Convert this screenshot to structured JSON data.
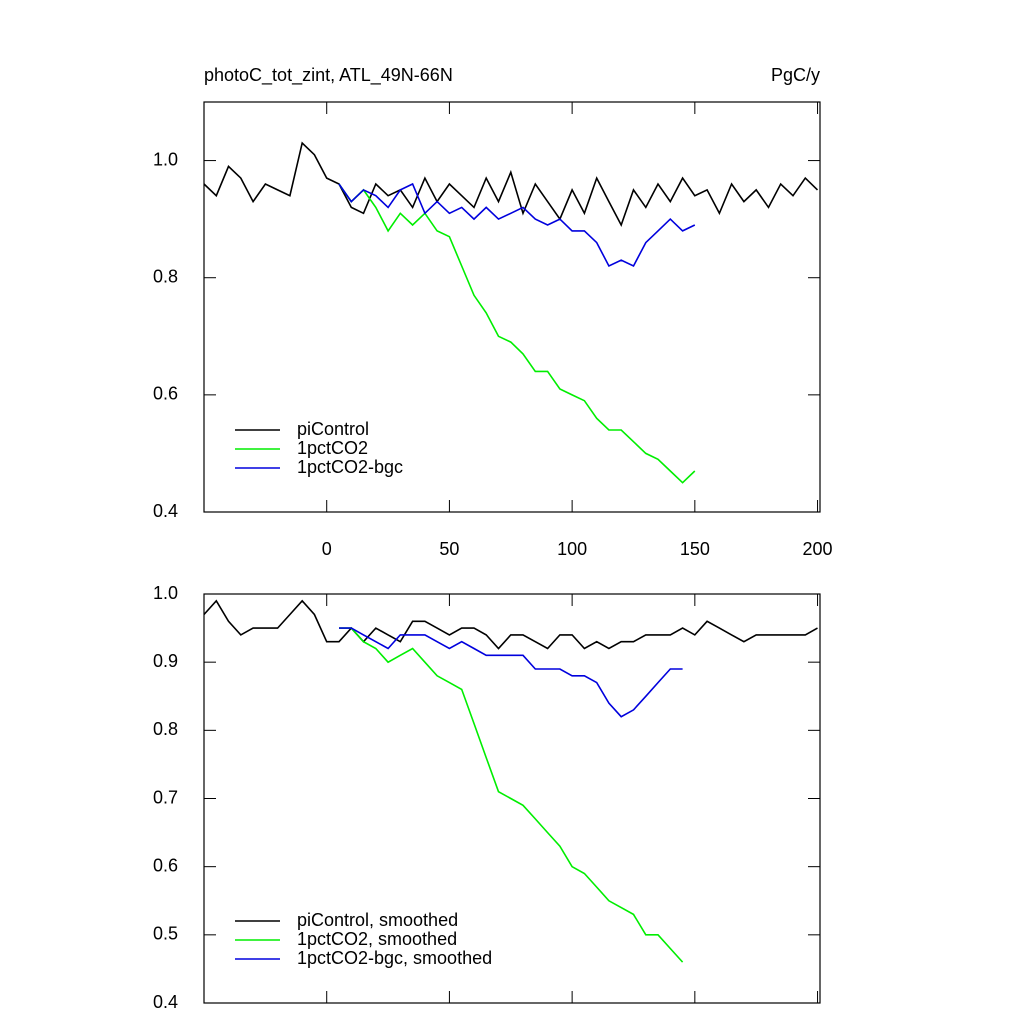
{
  "chart_data": [
    {
      "type": "line",
      "title": "photoC_tot_zint, ATL_49N-66N",
      "units_label": "PgC/y",
      "x": [
        -50,
        -45,
        -40,
        -35,
        -30,
        -25,
        -20,
        -15,
        -10,
        -5,
        0,
        5,
        10,
        15,
        20,
        25,
        30,
        35,
        40,
        45,
        50,
        55,
        60,
        65,
        70,
        75,
        80,
        85,
        90,
        95,
        100,
        105,
        110,
        115,
        120,
        125,
        130,
        135,
        140,
        145,
        150,
        155,
        160,
        165,
        170,
        175,
        180,
        185,
        190,
        195,
        200
      ],
      "xlim": [
        -50,
        201
      ],
      "xticks": [
        0,
        50,
        100,
        150,
        200
      ],
      "ylim": [
        0.4,
        1.1
      ],
      "yticks": [
        0.4,
        0.6,
        0.8,
        {
          "value": 1,
          "label": "1.0"
        }
      ],
      "legend": "lower left",
      "series": [
        {
          "name": "piControl",
          "color": "#000000",
          "values": [
            0.96,
            0.94,
            0.99,
            0.97,
            0.93,
            0.96,
            0.95,
            0.94,
            1.03,
            1.01,
            0.97,
            0.96,
            0.92,
            0.91,
            0.96,
            0.94,
            0.95,
            0.92,
            0.97,
            0.93,
            0.96,
            0.94,
            0.92,
            0.97,
            0.93,
            0.98,
            0.91,
            0.96,
            0.93,
            0.9,
            0.95,
            0.91,
            0.97,
            0.93,
            0.89,
            0.95,
            0.92,
            0.96,
            0.93,
            0.97,
            0.94,
            0.95,
            0.91,
            0.96,
            0.93,
            0.95,
            0.92,
            0.96,
            0.94,
            0.97,
            0.95
          ]
        },
        {
          "name": "1pctCO2",
          "color": "#00ee00",
          "values": [
            null,
            null,
            null,
            null,
            null,
            null,
            null,
            null,
            null,
            null,
            null,
            0.96,
            0.93,
            0.95,
            0.92,
            0.88,
            0.91,
            0.89,
            0.91,
            0.88,
            0.87,
            0.82,
            0.77,
            0.74,
            0.7,
            0.69,
            0.67,
            0.64,
            0.64,
            0.61,
            0.6,
            0.59,
            0.56,
            0.54,
            0.54,
            0.52,
            0.5,
            0.49,
            0.47,
            0.45,
            0.47,
            null,
            null,
            null,
            null,
            null,
            null,
            null,
            null,
            null,
            null
          ]
        },
        {
          "name": "1pctCO2-bgc",
          "color": "#0000dd",
          "values": [
            null,
            null,
            null,
            null,
            null,
            null,
            null,
            null,
            null,
            null,
            null,
            0.96,
            0.93,
            0.95,
            0.94,
            0.92,
            0.95,
            0.96,
            0.91,
            0.93,
            0.91,
            0.92,
            0.9,
            0.92,
            0.9,
            0.91,
            0.92,
            0.9,
            0.89,
            0.9,
            0.88,
            0.88,
            0.86,
            0.82,
            0.83,
            0.82,
            0.86,
            0.88,
            0.9,
            0.88,
            0.89,
            null,
            null,
            null,
            null,
            null,
            null,
            null,
            null,
            null,
            null
          ]
        }
      ]
    },
    {
      "type": "line",
      "x": [
        -50,
        -45,
        -40,
        -35,
        -30,
        -25,
        -20,
        -15,
        -10,
        -5,
        0,
        5,
        10,
        15,
        20,
        25,
        30,
        35,
        40,
        45,
        50,
        55,
        60,
        65,
        70,
        75,
        80,
        85,
        90,
        95,
        100,
        105,
        110,
        115,
        120,
        125,
        130,
        135,
        140,
        145,
        150,
        155,
        160,
        165,
        170,
        175,
        180,
        185,
        190,
        195,
        200
      ],
      "xlim": [
        -50,
        201
      ],
      "xticks": [
        0,
        50,
        100,
        150,
        200
      ],
      "ylim": [
        0.4,
        1.0
      ],
      "yticks": [
        0.4,
        0.5,
        0.6,
        0.7,
        0.8,
        0.9,
        {
          "value": 1,
          "label": "1.0"
        }
      ],
      "legend": "lower left",
      "series": [
        {
          "name": "piControl, smoothed",
          "color": "#000000",
          "values": [
            0.97,
            0.99,
            0.96,
            0.94,
            0.95,
            0.95,
            0.95,
            0.97,
            0.99,
            0.97,
            0.93,
            0.93,
            0.95,
            0.93,
            0.95,
            0.94,
            0.93,
            0.96,
            0.96,
            0.95,
            0.94,
            0.95,
            0.95,
            0.94,
            0.92,
            0.94,
            0.94,
            0.93,
            0.92,
            0.94,
            0.94,
            0.92,
            0.93,
            0.92,
            0.93,
            0.93,
            0.94,
            0.94,
            0.94,
            0.95,
            0.94,
            0.96,
            0.95,
            0.94,
            0.93,
            0.94,
            0.94,
            0.94,
            0.94,
            0.94,
            0.95
          ]
        },
        {
          "name": "1pctCO2, smoothed",
          "color": "#00ee00",
          "values": [
            null,
            null,
            null,
            null,
            null,
            null,
            null,
            null,
            null,
            null,
            null,
            0.95,
            0.95,
            0.93,
            0.92,
            0.9,
            0.91,
            0.92,
            0.9,
            0.88,
            0.87,
            0.86,
            0.81,
            0.76,
            0.71,
            0.7,
            0.69,
            0.67,
            0.65,
            0.63,
            0.6,
            0.59,
            0.57,
            0.55,
            0.54,
            0.53,
            0.5,
            0.5,
            0.48,
            0.46,
            null,
            null,
            null,
            null,
            null,
            null,
            null,
            null,
            null,
            null,
            null
          ]
        },
        {
          "name": "1pctCO2-bgc, smoothed",
          "color": "#0000dd",
          "values": [
            null,
            null,
            null,
            null,
            null,
            null,
            null,
            null,
            null,
            null,
            null,
            0.95,
            0.95,
            0.94,
            0.93,
            0.92,
            0.94,
            0.94,
            0.94,
            0.93,
            0.92,
            0.93,
            0.92,
            0.91,
            0.91,
            0.91,
            0.91,
            0.89,
            0.89,
            0.89,
            0.88,
            0.88,
            0.87,
            0.84,
            0.82,
            0.83,
            0.85,
            0.87,
            0.89,
            0.89,
            null,
            null,
            null,
            null,
            null,
            null,
            null,
            null,
            null,
            null,
            null
          ]
        }
      ]
    }
  ]
}
